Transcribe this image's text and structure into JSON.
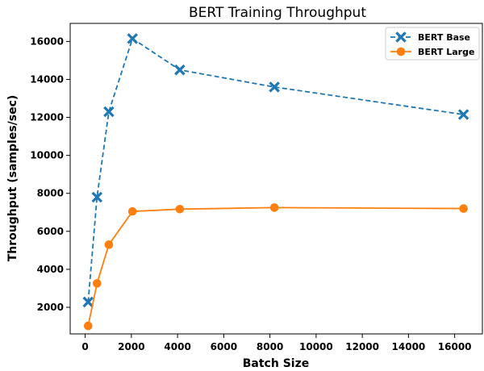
{
  "chart_data": {
    "type": "line",
    "title": "BERT Training Throughput",
    "xlabel": "Batch Size",
    "ylabel": "Throughput (samples/sec)",
    "xlim": [
      -650,
      17200
    ],
    "ylim": [
      600,
      16950
    ],
    "xticks": [
      0,
      2000,
      4000,
      6000,
      8000,
      10000,
      12000,
      14000,
      16000
    ],
    "yticks": [
      2000,
      4000,
      6000,
      8000,
      10000,
      12000,
      14000,
      16000
    ],
    "grid": false,
    "legend_position": "top-right",
    "series": [
      {
        "name": "BERT Base",
        "color": "#1f77b4",
        "line_style": "dashed",
        "marker": "x-marker",
        "x": [
          128,
          512,
          1024,
          2048,
          4096,
          8192,
          16384
        ],
        "y": [
          2280,
          7800,
          12300,
          16150,
          14500,
          13600,
          12150
        ]
      },
      {
        "name": "BERT Large",
        "color": "#ff7f0e",
        "line_style": "solid",
        "marker": "circle-marker",
        "x": [
          128,
          512,
          1024,
          2048,
          4096,
          8192,
          16384
        ],
        "y": [
          1020,
          3260,
          5300,
          7050,
          7170,
          7250,
          7200
        ]
      }
    ]
  }
}
